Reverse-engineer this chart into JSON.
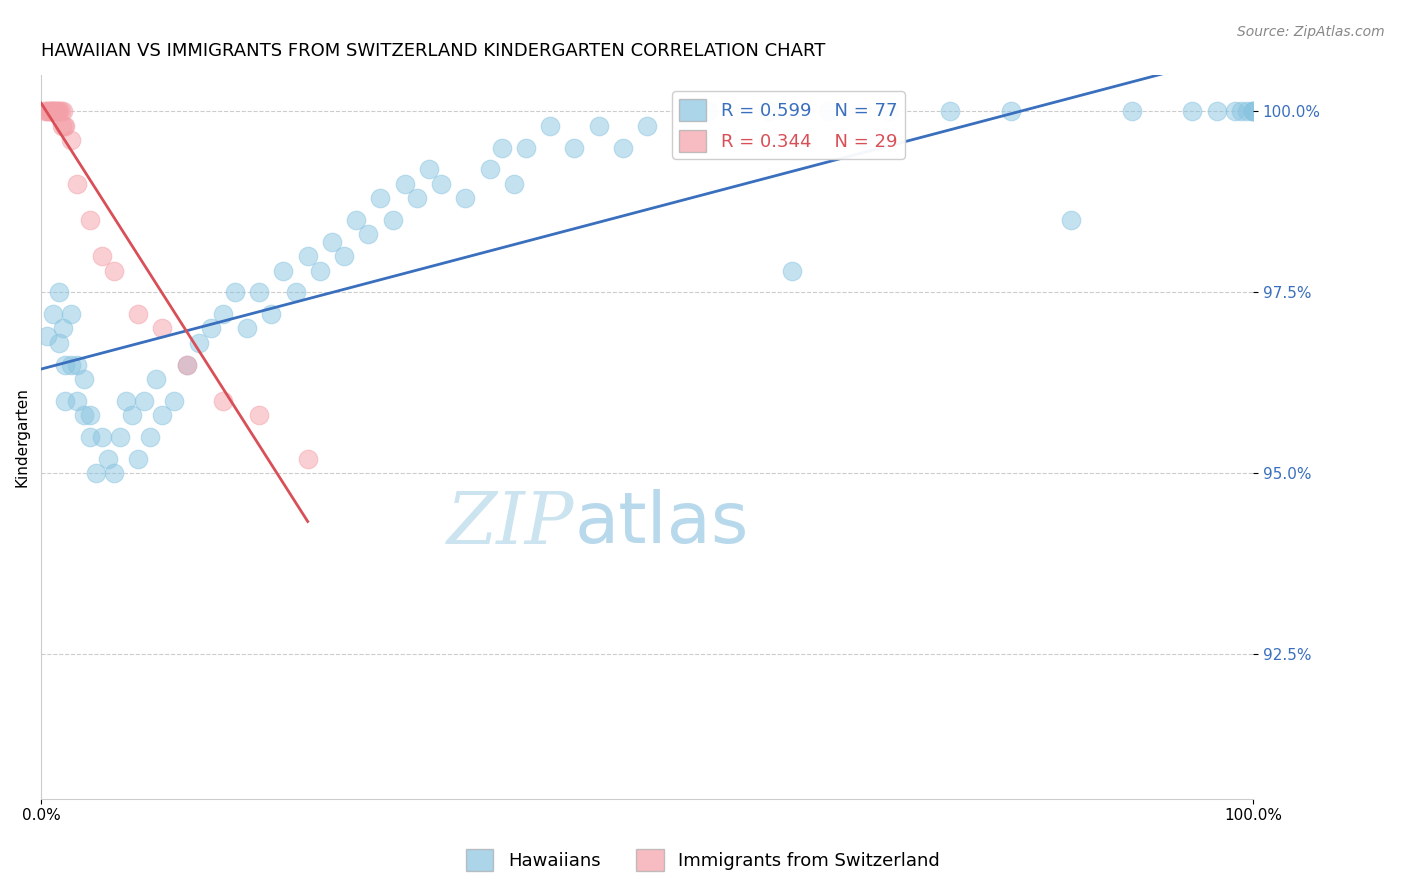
{
  "title": "HAWAIIAN VS IMMIGRANTS FROM SWITZERLAND KINDERGARTEN CORRELATION CHART",
  "source_text": "Source: ZipAtlas.com",
  "ylabel": "Kindergarten",
  "watermark_zip": "ZIP",
  "watermark_atlas": "atlas",
  "xlim": [
    0,
    1.0
  ],
  "ylim": [
    0.905,
    1.005
  ],
  "yticks": [
    0.925,
    0.95,
    0.975,
    1.0
  ],
  "ytick_labels": [
    "92.5%",
    "95.0%",
    "97.5%",
    "100.0%"
  ],
  "xtick_labels": [
    "0.0%",
    "100.0%"
  ],
  "legend_blue_label": "Hawaiians",
  "legend_pink_label": "Immigrants from Switzerland",
  "R_blue": 0.599,
  "N_blue": 77,
  "R_pink": 0.344,
  "N_pink": 29,
  "blue_color": "#89c4e1",
  "pink_color": "#f4a0a8",
  "trend_blue_color": "#3a6fbe",
  "trend_pink_color": "#d94f57",
  "blue_x": [
    0.005,
    0.01,
    0.015,
    0.015,
    0.018,
    0.02,
    0.02,
    0.025,
    0.025,
    0.03,
    0.03,
    0.035,
    0.035,
    0.04,
    0.04,
    0.045,
    0.05,
    0.055,
    0.06,
    0.065,
    0.07,
    0.075,
    0.08,
    0.085,
    0.09,
    0.095,
    0.1,
    0.11,
    0.12,
    0.13,
    0.14,
    0.15,
    0.16,
    0.17,
    0.18,
    0.19,
    0.2,
    0.21,
    0.22,
    0.23,
    0.24,
    0.25,
    0.26,
    0.27,
    0.28,
    0.29,
    0.3,
    0.31,
    0.32,
    0.33,
    0.35,
    0.37,
    0.38,
    0.39,
    0.4,
    0.42,
    0.44,
    0.46,
    0.48,
    0.5,
    0.55,
    0.6,
    0.65,
    0.7,
    0.75,
    0.8,
    0.85,
    0.9,
    0.95,
    0.97,
    0.985,
    0.99,
    0.995,
    1.0,
    1.0,
    1.0,
    0.62
  ],
  "blue_y": [
    0.969,
    0.972,
    0.968,
    0.975,
    0.97,
    0.965,
    0.96,
    0.972,
    0.965,
    0.96,
    0.965,
    0.958,
    0.963,
    0.958,
    0.955,
    0.95,
    0.955,
    0.952,
    0.95,
    0.955,
    0.96,
    0.958,
    0.952,
    0.96,
    0.955,
    0.963,
    0.958,
    0.96,
    0.965,
    0.968,
    0.97,
    0.972,
    0.975,
    0.97,
    0.975,
    0.972,
    0.978,
    0.975,
    0.98,
    0.978,
    0.982,
    0.98,
    0.985,
    0.983,
    0.988,
    0.985,
    0.99,
    0.988,
    0.992,
    0.99,
    0.988,
    0.992,
    0.995,
    0.99,
    0.995,
    0.998,
    0.995,
    0.998,
    0.995,
    0.998,
    1.0,
    1.0,
    1.0,
    1.0,
    1.0,
    1.0,
    0.985,
    1.0,
    1.0,
    1.0,
    1.0,
    1.0,
    1.0,
    1.0,
    1.0,
    1.0,
    0.978
  ],
  "pink_x": [
    0.003,
    0.005,
    0.006,
    0.007,
    0.008,
    0.009,
    0.01,
    0.01,
    0.011,
    0.012,
    0.013,
    0.014,
    0.015,
    0.016,
    0.017,
    0.018,
    0.019,
    0.02,
    0.025,
    0.03,
    0.04,
    0.05,
    0.06,
    0.08,
    0.1,
    0.12,
    0.15,
    0.18,
    0.22
  ],
  "pink_y": [
    1.0,
    1.0,
    1.0,
    1.0,
    1.0,
    1.0,
    1.0,
    1.0,
    1.0,
    1.0,
    1.0,
    1.0,
    1.0,
    1.0,
    0.998,
    1.0,
    0.998,
    0.998,
    0.996,
    0.99,
    0.985,
    0.98,
    0.978,
    0.972,
    0.97,
    0.965,
    0.96,
    0.958,
    0.952
  ],
  "grid_color": "#cccccc",
  "background_color": "#ffffff",
  "title_fontsize": 13,
  "axis_fontsize": 11,
  "tick_fontsize": 11,
  "legend_fontsize": 13,
  "watermark_zip_fontsize": 52,
  "watermark_atlas_fontsize": 52,
  "watermark_color": "#cce3f0",
  "source_fontsize": 10
}
